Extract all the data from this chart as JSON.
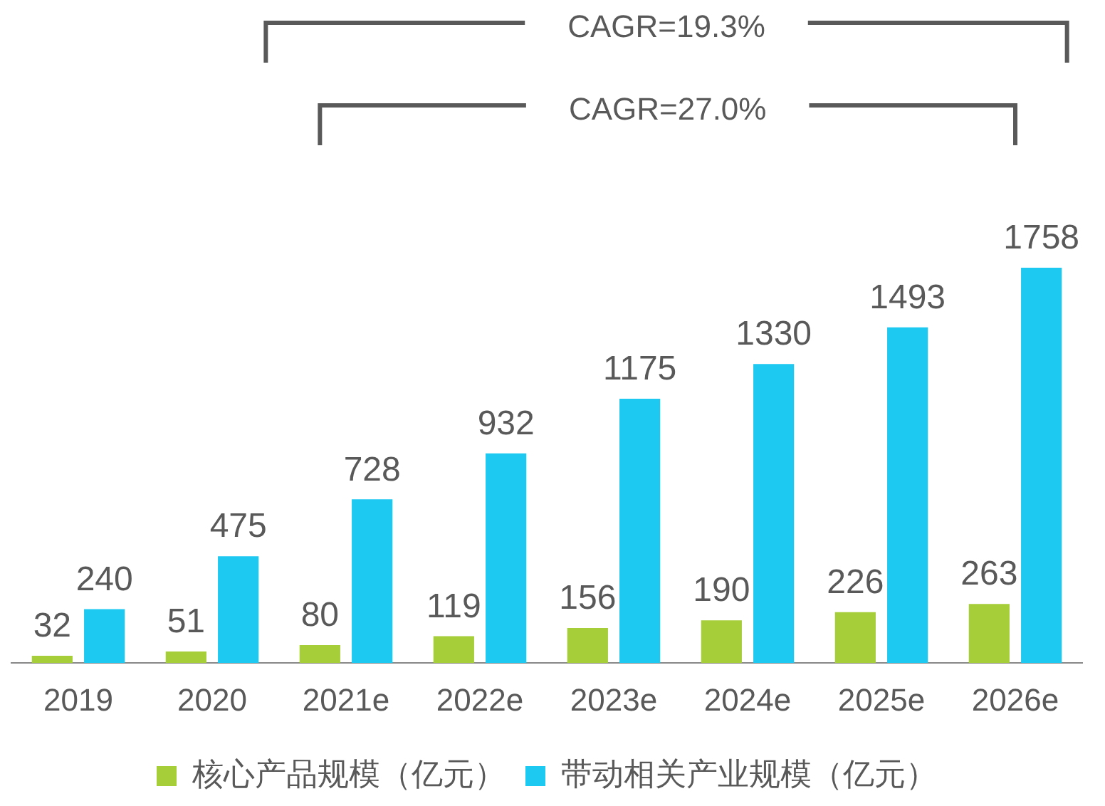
{
  "chart_data": {
    "type": "bar",
    "categories": [
      "2019",
      "2020",
      "2021e",
      "2022e",
      "2023e",
      "2024e",
      "2025e",
      "2026e"
    ],
    "series": [
      {
        "name": "核心产品规模（亿元）",
        "color": "#a6ce39",
        "values": [
          32,
          51,
          80,
          119,
          156,
          190,
          226,
          263
        ]
      },
      {
        "name": "带动相关产业规模（亿元）",
        "color": "#1ec9f1",
        "values": [
          240,
          475,
          728,
          932,
          1175,
          1330,
          1493,
          1758
        ]
      }
    ],
    "data_labels": true,
    "legend": "bottom",
    "grid": false,
    "annotations": [
      "CAGR=19.3%",
      "CAGR=27.0%"
    ]
  }
}
